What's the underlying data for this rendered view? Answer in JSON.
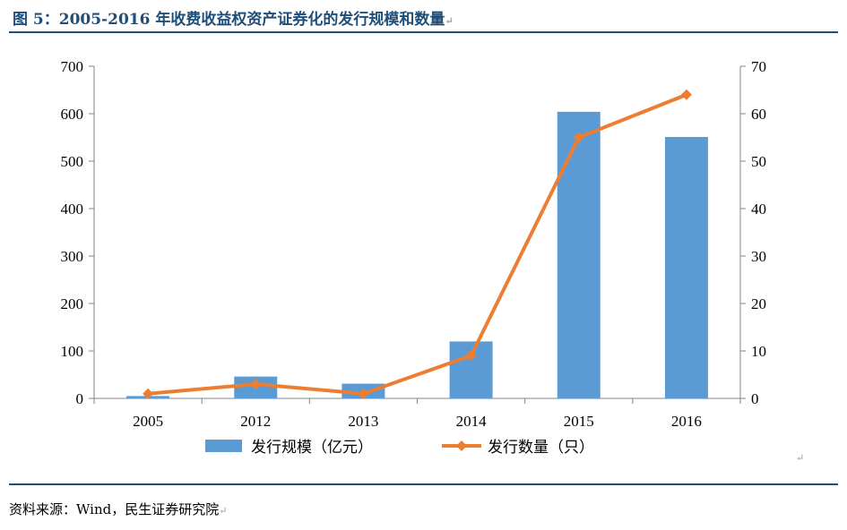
{
  "figure": {
    "title": "图 5：2005-2016 年收费收益权资产证券化的发行规模和数量",
    "source": "资料来源：Wind，民生证券研究院",
    "return_mark": "↵"
  },
  "chart_data": {
    "type": "bar",
    "categories": [
      "2005",
      "2012",
      "2013",
      "2014",
      "2015",
      "2016"
    ],
    "series": [
      {
        "name": "发行规模（亿元）",
        "type": "bar",
        "axis": "left",
        "color": "#5b9bd5",
        "values": [
          5,
          46,
          31,
          120,
          604,
          551
        ]
      },
      {
        "name": "发行数量（只）",
        "type": "line",
        "axis": "right",
        "color": "#ed7d31",
        "marker": "diamond",
        "values": [
          1,
          3,
          1,
          9,
          55,
          64
        ]
      }
    ],
    "y_left": {
      "min": 0,
      "max": 700,
      "ticks": [
        "0",
        "100",
        "200",
        "300",
        "400",
        "500",
        "600",
        "700"
      ]
    },
    "y_right": {
      "min": 0,
      "max": 70,
      "ticks": [
        "0",
        "10",
        "20",
        "30",
        "40",
        "50",
        "60",
        "70"
      ]
    },
    "grid": false,
    "legend": "bottom"
  }
}
